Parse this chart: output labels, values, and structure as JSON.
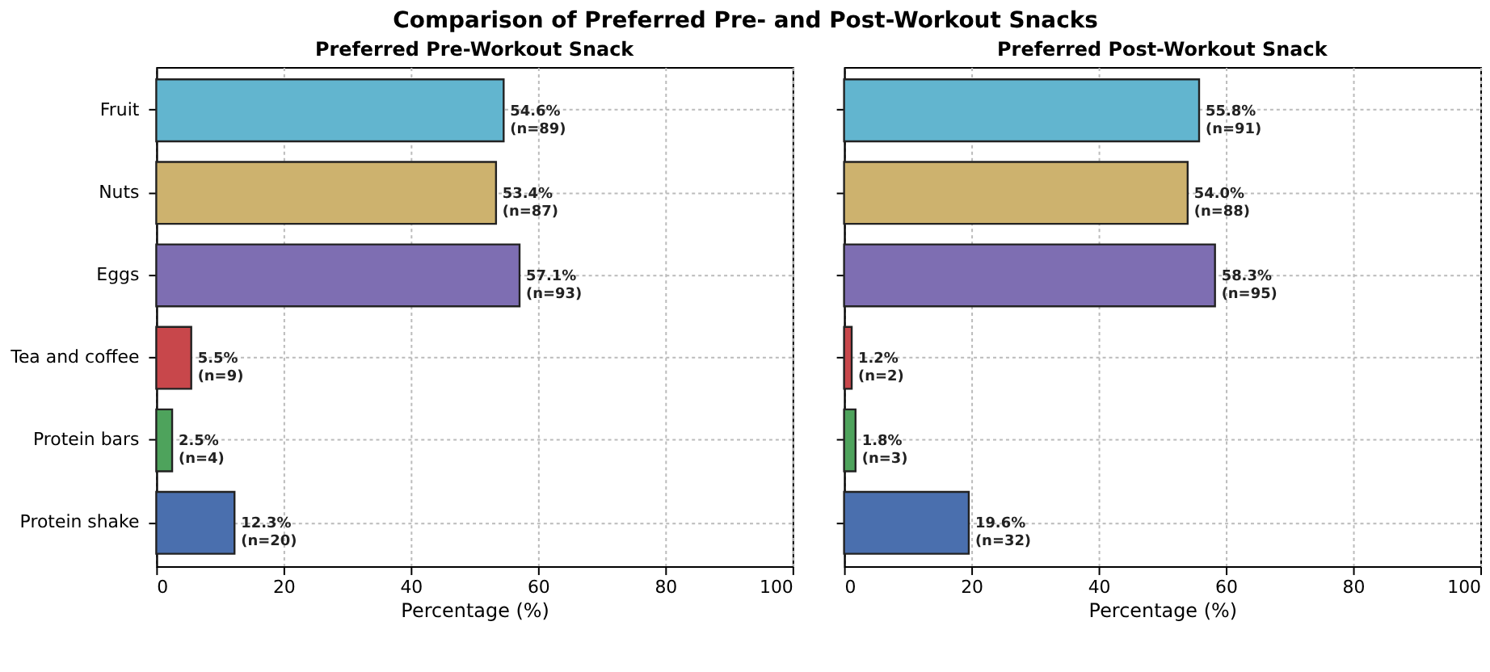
{
  "chart_data": [
    {
      "type": "bar",
      "orientation": "horizontal",
      "title": "Preferred Pre-Workout Snack",
      "xlabel": "Percentage (%)",
      "categories": [
        "Fruit",
        "Nuts",
        "Eggs",
        "Tea and coffee",
        "Protein bars",
        "Protein shake"
      ],
      "values": [
        54.6,
        53.4,
        57.1,
        5.5,
        2.5,
        12.3
      ],
      "colors": [
        "#62b5cf",
        "#cdb26e",
        "#7e6eb2",
        "#c8474b",
        "#4ea35c",
        "#4a6fae"
      ],
      "value_labels": [
        "54.6%\n(n=89)",
        "53.4%\n(n=87)",
        "57.1%\n(n=93)",
        "5.5%\n(n=9)",
        "2.5%\n(n=4)",
        "12.3%\n(n=20)"
      ],
      "xlim": [
        0,
        100
      ],
      "xticks": [
        0,
        20,
        40,
        60,
        80,
        100
      ],
      "grid": true,
      "annotations": [
        "Comparison of Preferred Pre- and Post-Workout Snacks"
      ]
    },
    {
      "type": "bar",
      "orientation": "horizontal",
      "title": "Preferred Post-Workout Snack",
      "xlabel": "Percentage (%)",
      "categories": [
        "Fruit",
        "Nuts",
        "Eggs",
        "Tea and coffee",
        "Protein bars",
        "Protein shake"
      ],
      "values": [
        55.8,
        54.0,
        58.3,
        1.2,
        1.8,
        19.6
      ],
      "colors": [
        "#62b5cf",
        "#cdb26e",
        "#7e6eb2",
        "#c8474b",
        "#4ea35c",
        "#4a6fae"
      ],
      "value_labels": [
        "55.8%\n(n=91)",
        "54.0%\n(n=88)",
        "58.3%\n(n=95)",
        "1.2%\n(n=2)",
        "1.8%\n(n=3)",
        "19.6%\n(n=32)"
      ],
      "xlim": [
        0,
        100
      ],
      "xticks": [
        0,
        20,
        40,
        60,
        80,
        100
      ],
      "grid": true,
      "tick_labels": "x"
    }
  ]
}
